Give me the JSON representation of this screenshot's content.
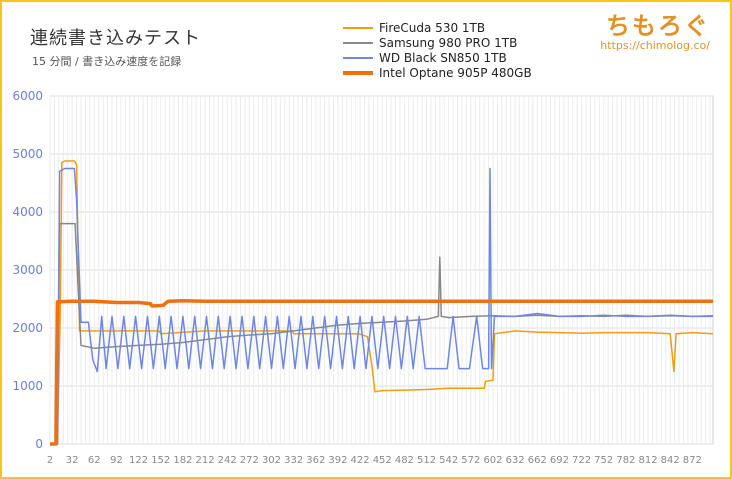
{
  "header": {
    "title": "連続書き込みテスト",
    "subtitle": "15 分間 / 書き込み速度を記録"
  },
  "brand": {
    "name": "ちもろぐ",
    "url": "https://chimolog.co/"
  },
  "chart_data": {
    "type": "line",
    "title": "連続書き込みテスト",
    "subtitle": "15 分間 / 書き込み速度を記録",
    "xlabel": "",
    "ylabel": "",
    "ylim": [
      0,
      6000
    ],
    "xlim": [
      2,
      900
    ],
    "yticks": [
      0,
      1000,
      2000,
      3000,
      4000,
      5000,
      6000
    ],
    "xticks": [
      2,
      32,
      62,
      92,
      122,
      152,
      182,
      212,
      242,
      272,
      302,
      332,
      362,
      392,
      422,
      452,
      482,
      512,
      542,
      572,
      602,
      632,
      662,
      692,
      722,
      752,
      782,
      812,
      842,
      872
    ],
    "grid": true,
    "legend_position": "top",
    "series": [
      {
        "name": "FireCuda 530 1TB",
        "color": "#f39c12",
        "width": 1.5,
        "points": [
          [
            2,
            0
          ],
          [
            12,
            0
          ],
          [
            16,
            2300
          ],
          [
            18,
            4850
          ],
          [
            22,
            4880
          ],
          [
            35,
            4880
          ],
          [
            38,
            4820
          ],
          [
            42,
            1950
          ],
          [
            60,
            1950
          ],
          [
            62,
            1950
          ],
          [
            150,
            1950
          ],
          [
            152,
            1900
          ],
          [
            212,
            1950
          ],
          [
            242,
            1950
          ],
          [
            330,
            1950
          ],
          [
            332,
            1900
          ],
          [
            380,
            1900
          ],
          [
            420,
            1900
          ],
          [
            432,
            1850
          ],
          [
            438,
            1350
          ],
          [
            442,
            900
          ],
          [
            452,
            920
          ],
          [
            482,
            930
          ],
          [
            512,
            940
          ],
          [
            540,
            960
          ],
          [
            572,
            960
          ],
          [
            590,
            960
          ],
          [
            592,
            1080
          ],
          [
            602,
            1100
          ],
          [
            604,
            1900
          ],
          [
            632,
            1950
          ],
          [
            662,
            1930
          ],
          [
            692,
            1920
          ],
          [
            722,
            1910
          ],
          [
            752,
            1920
          ],
          [
            782,
            1920
          ],
          [
            812,
            1920
          ],
          [
            842,
            1900
          ],
          [
            847,
            1250
          ],
          [
            850,
            1900
          ],
          [
            872,
            1920
          ],
          [
            900,
            1900
          ]
        ]
      },
      {
        "name": "Samsung 980 PRO 1TB",
        "color": "#888888",
        "width": 1.5,
        "points": [
          [
            2,
            0
          ],
          [
            12,
            0
          ],
          [
            15,
            3800
          ],
          [
            28,
            3800
          ],
          [
            36,
            3800
          ],
          [
            40,
            2700
          ],
          [
            44,
            1700
          ],
          [
            62,
            1650
          ],
          [
            92,
            1680
          ],
          [
            122,
            1700
          ],
          [
            152,
            1720
          ],
          [
            182,
            1750
          ],
          [
            212,
            1800
          ],
          [
            242,
            1850
          ],
          [
            272,
            1880
          ],
          [
            302,
            1900
          ],
          [
            332,
            1950
          ],
          [
            362,
            2000
          ],
          [
            392,
            2050
          ],
          [
            422,
            2080
          ],
          [
            452,
            2100
          ],
          [
            482,
            2120
          ],
          [
            512,
            2150
          ],
          [
            528,
            2200
          ],
          [
            530,
            3220
          ],
          [
            532,
            2200
          ],
          [
            542,
            2180
          ],
          [
            572,
            2200
          ],
          [
            602,
            2210
          ],
          [
            632,
            2200
          ],
          [
            662,
            2220
          ],
          [
            692,
            2200
          ],
          [
            722,
            2210
          ],
          [
            752,
            2200
          ],
          [
            782,
            2220
          ],
          [
            812,
            2200
          ],
          [
            842,
            2210
          ],
          [
            872,
            2200
          ],
          [
            900,
            2210
          ]
        ]
      },
      {
        "name": "WD Black SN850 1TB",
        "color": "#6e86e6",
        "width": 1.5,
        "points": [
          [
            2,
            0
          ],
          [
            12,
            0
          ],
          [
            15,
            4700
          ],
          [
            22,
            4750
          ],
          [
            35,
            4750
          ],
          [
            38,
            4200
          ],
          [
            44,
            2100
          ],
          [
            54,
            2100
          ],
          [
            60,
            1450
          ],
          [
            66,
            1250
          ],
          [
            72,
            2200
          ],
          [
            78,
            1300
          ],
          [
            86,
            2200
          ],
          [
            94,
            1300
          ],
          [
            102,
            2200
          ],
          [
            110,
            1300
          ],
          [
            118,
            2200
          ],
          [
            126,
            1300
          ],
          [
            134,
            2200
          ],
          [
            142,
            1300
          ],
          [
            150,
            2200
          ],
          [
            158,
            1300
          ],
          [
            166,
            2200
          ],
          [
            174,
            1300
          ],
          [
            182,
            2200
          ],
          [
            190,
            1300
          ],
          [
            198,
            2200
          ],
          [
            206,
            1300
          ],
          [
            214,
            2200
          ],
          [
            222,
            1300
          ],
          [
            230,
            2200
          ],
          [
            238,
            1300
          ],
          [
            246,
            2200
          ],
          [
            254,
            1300
          ],
          [
            262,
            2200
          ],
          [
            270,
            1300
          ],
          [
            278,
            2200
          ],
          [
            286,
            1300
          ],
          [
            294,
            2200
          ],
          [
            302,
            1300
          ],
          [
            310,
            2200
          ],
          [
            318,
            1300
          ],
          [
            326,
            2200
          ],
          [
            334,
            1300
          ],
          [
            342,
            2200
          ],
          [
            350,
            1300
          ],
          [
            358,
            2200
          ],
          [
            366,
            1300
          ],
          [
            374,
            2200
          ],
          [
            382,
            1300
          ],
          [
            390,
            2200
          ],
          [
            398,
            1300
          ],
          [
            406,
            2200
          ],
          [
            414,
            1300
          ],
          [
            422,
            2200
          ],
          [
            430,
            1300
          ],
          [
            438,
            2200
          ],
          [
            446,
            1300
          ],
          [
            454,
            2200
          ],
          [
            462,
            1300
          ],
          [
            470,
            2200
          ],
          [
            478,
            1300
          ],
          [
            486,
            2200
          ],
          [
            494,
            1300
          ],
          [
            502,
            2200
          ],
          [
            510,
            1300
          ],
          [
            530,
            1300
          ],
          [
            540,
            1300
          ],
          [
            548,
            2200
          ],
          [
            556,
            1300
          ],
          [
            570,
            1300
          ],
          [
            580,
            2200
          ],
          [
            588,
            1300
          ],
          [
            596,
            1300
          ],
          [
            598,
            4750
          ],
          [
            600,
            1300
          ],
          [
            604,
            2200
          ],
          [
            632,
            2200
          ],
          [
            662,
            2250
          ],
          [
            692,
            2200
          ],
          [
            722,
            2200
          ],
          [
            752,
            2220
          ],
          [
            782,
            2200
          ],
          [
            812,
            2200
          ],
          [
            842,
            2220
          ],
          [
            872,
            2200
          ],
          [
            900,
            2200
          ]
        ]
      },
      {
        "name": "Intel Optane 905P 480GB",
        "color": "#f07010",
        "width": 3.5,
        "points": [
          [
            2,
            0
          ],
          [
            10,
            0
          ],
          [
            12,
            2450
          ],
          [
            30,
            2460
          ],
          [
            62,
            2460
          ],
          [
            92,
            2440
          ],
          [
            122,
            2440
          ],
          [
            138,
            2420
          ],
          [
            140,
            2380
          ],
          [
            155,
            2390
          ],
          [
            162,
            2460
          ],
          [
            182,
            2470
          ],
          [
            212,
            2460
          ],
          [
            242,
            2460
          ],
          [
            272,
            2460
          ],
          [
            302,
            2460
          ],
          [
            332,
            2460
          ],
          [
            362,
            2460
          ],
          [
            392,
            2460
          ],
          [
            422,
            2460
          ],
          [
            452,
            2460
          ],
          [
            482,
            2460
          ],
          [
            512,
            2460
          ],
          [
            542,
            2460
          ],
          [
            572,
            2460
          ],
          [
            602,
            2460
          ],
          [
            632,
            2460
          ],
          [
            662,
            2460
          ],
          [
            692,
            2460
          ],
          [
            722,
            2460
          ],
          [
            752,
            2460
          ],
          [
            782,
            2460
          ],
          [
            812,
            2460
          ],
          [
            842,
            2460
          ],
          [
            872,
            2460
          ],
          [
            900,
            2460
          ]
        ]
      }
    ]
  }
}
